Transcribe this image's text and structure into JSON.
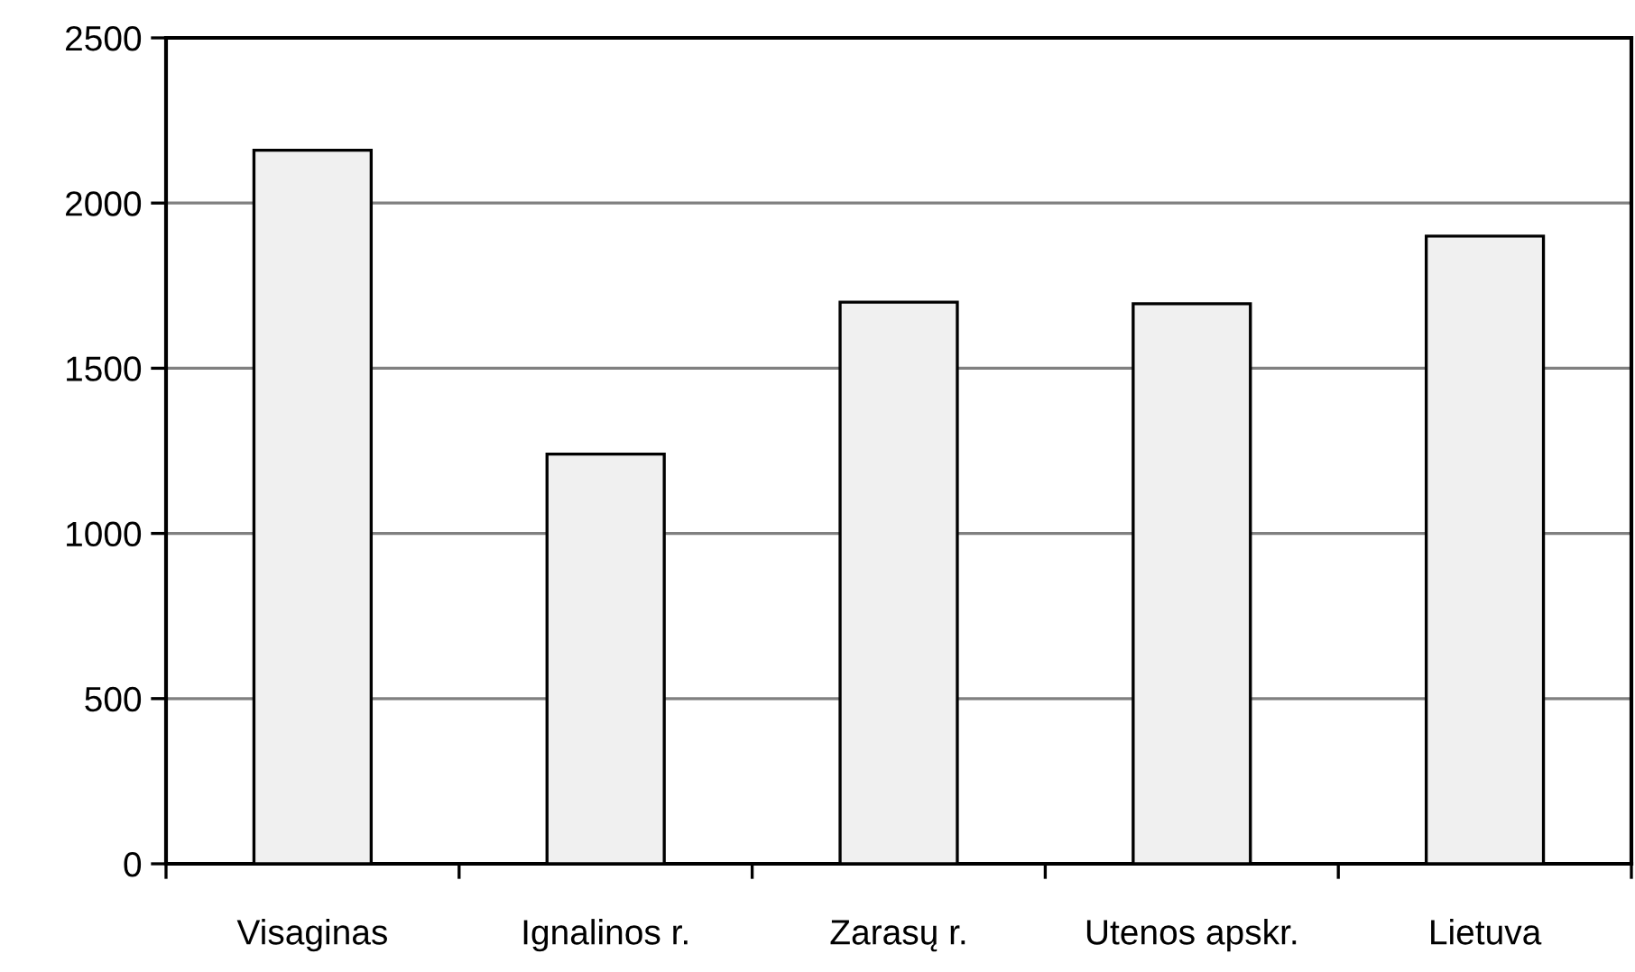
{
  "chart_data": {
    "type": "bar",
    "categories": [
      "Visaginas",
      "Ignalinos r.",
      "Zarasų r.",
      "Utenos apskr.",
      "Lietuva"
    ],
    "values": [
      2160,
      1240,
      1700,
      1695,
      1900
    ],
    "color": "#f0f0f0",
    "ylim": [
      0,
      2500
    ],
    "yticks": [
      0,
      500,
      1000,
      1500,
      2000,
      2500
    ],
    "grid": "y",
    "legend": false
  }
}
